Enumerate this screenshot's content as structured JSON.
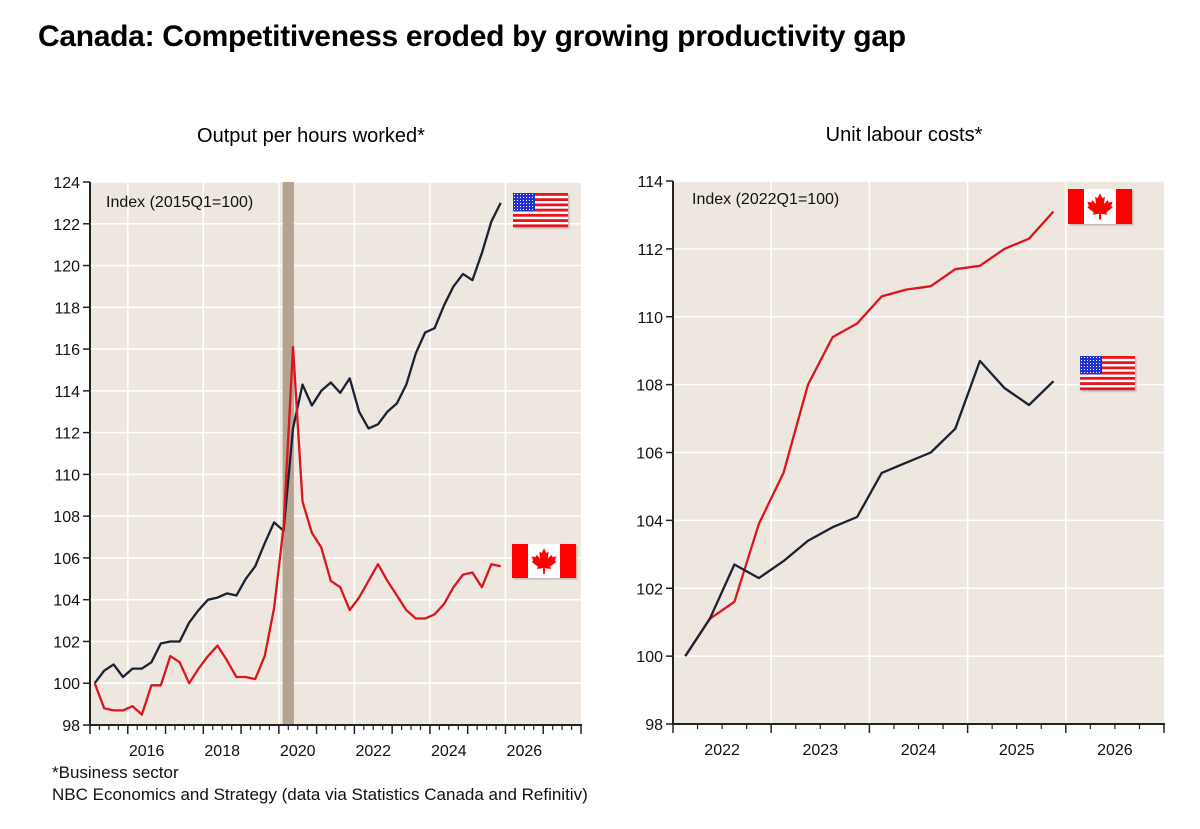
{
  "title": "Canada: Competitiveness eroded by growing productivity gap",
  "footer": {
    "footnote": "*Business sector",
    "source": "NBC Economics and Strategy (data via Statistics Canada and Refinitiv)"
  },
  "colors": {
    "plot_background": "#ede7e0",
    "gridline": "#ffffff",
    "usa_line": "#1a2232",
    "canada_line": "#d9161f",
    "recession_shade": "#b5a590"
  },
  "chart_data": [
    {
      "type": "line",
      "title": "Output per hours worked*",
      "annotation": "Index (2015Q1=100)",
      "xlabel": "",
      "ylabel": "",
      "ylim": [
        98,
        124
      ],
      "yticks": [
        98,
        100,
        102,
        104,
        106,
        108,
        110,
        112,
        114,
        116,
        118,
        120,
        122,
        124
      ],
      "xlim": [
        2015,
        2028
      ],
      "xtick_labels": [
        "2016",
        "2018",
        "2020",
        "2022",
        "2024",
        "2026"
      ],
      "grid": true,
      "legend": "flag icons at right end of each line",
      "shaded_periods": [
        {
          "label": "recession",
          "start": 2020.1,
          "end": 2020.4
        }
      ],
      "x_start": "2015Q1",
      "frequency": "quarterly",
      "series": [
        {
          "name": "United States",
          "flag": "usa-flag",
          "values": [
            100.0,
            100.6,
            100.9,
            100.3,
            100.7,
            100.7,
            101.0,
            101.9,
            102.0,
            102.0,
            102.9,
            103.5,
            104.0,
            104.1,
            104.3,
            104.2,
            105.0,
            105.6,
            106.7,
            107.7,
            107.3,
            112.2,
            114.3,
            113.3,
            114.0,
            114.4,
            113.9,
            114.6,
            113.0,
            112.2,
            112.4,
            113.0,
            113.4,
            114.3,
            115.8,
            116.8,
            117.0,
            118.1,
            119.0,
            119.6,
            119.3,
            120.6,
            122.1,
            123.0
          ]
        },
        {
          "name": "Canada",
          "flag": "canada-flag",
          "values": [
            100.0,
            98.8,
            98.7,
            98.7,
            98.9,
            98.5,
            99.9,
            99.9,
            101.3,
            101.0,
            100.0,
            100.7,
            101.3,
            101.8,
            101.1,
            100.3,
            100.3,
            100.2,
            101.3,
            103.6,
            107.5,
            116.1,
            108.7,
            107.2,
            106.5,
            104.9,
            104.6,
            103.5,
            104.1,
            104.9,
            105.7,
            104.9,
            104.2,
            103.5,
            103.1,
            103.1,
            103.3,
            103.8,
            104.6,
            105.2,
            105.3,
            104.6,
            105.7,
            105.6
          ]
        }
      ]
    },
    {
      "type": "line",
      "title": "Unit labour costs*",
      "annotation": "Index (2022Q1=100)",
      "xlabel": "",
      "ylabel": "",
      "ylim": [
        98,
        114
      ],
      "yticks": [
        98,
        100,
        102,
        104,
        106,
        108,
        110,
        112,
        114
      ],
      "xlim": [
        2022,
        2027
      ],
      "xtick_labels": [
        "2022",
        "2023",
        "2024",
        "2025",
        "2026"
      ],
      "grid": true,
      "legend": "flag icons at right end of each line",
      "x_start": "2022Q1",
      "frequency": "quarterly",
      "series": [
        {
          "name": "Canada",
          "flag": "canada-flag",
          "values": [
            100.0,
            101.1,
            101.6,
            103.9,
            105.4,
            108.0,
            109.4,
            109.8,
            110.6,
            110.8,
            110.9,
            111.4,
            111.5,
            112.0,
            112.3,
            113.1
          ]
        },
        {
          "name": "United States",
          "flag": "usa-flag",
          "values": [
            100.0,
            101.1,
            102.7,
            102.3,
            102.8,
            103.4,
            103.8,
            104.1,
            105.4,
            105.7,
            106.0,
            106.7,
            108.7,
            107.9,
            107.4,
            108.1
          ]
        }
      ]
    }
  ]
}
